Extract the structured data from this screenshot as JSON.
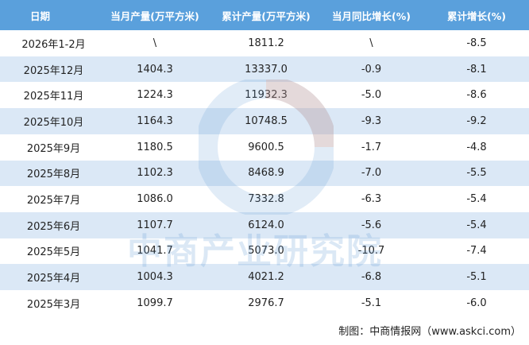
{
  "table": {
    "header": [
      "日期",
      "当月产量(万平方米)",
      "累计产量(万平方米)",
      "当月同比增长(%)",
      "累计增长(%)"
    ],
    "rows": [
      [
        "2026年1-2月",
        "\\",
        "1811.2",
        "\\",
        "-8.5"
      ],
      [
        "2025年12月",
        "1404.3",
        "13337.0",
        "-0.9",
        "-8.1"
      ],
      [
        "2025年11月",
        "1224.3",
        "11932.3",
        "-5.0",
        "-8.6"
      ],
      [
        "2025年10月",
        "1164.3",
        "10748.5",
        "-9.3",
        "-9.2"
      ],
      [
        "2025年9月",
        "1180.5",
        "9600.5",
        "-1.7",
        "-4.8"
      ],
      [
        "2025年8月",
        "1102.3",
        "8468.9",
        "-7.0",
        "-5.5"
      ],
      [
        "2025年7月",
        "1086.0",
        "7332.8",
        "-6.3",
        "-5.4"
      ],
      [
        "2025年6月",
        "1107.7",
        "6124.0",
        "-5.6",
        "-5.4"
      ],
      [
        "2025年5月",
        "1041.7",
        "5073.0",
        "-10.7",
        "-7.4"
      ],
      [
        "2025年4月",
        "1004.3",
        "4021.2",
        "-6.8",
        "-5.1"
      ],
      [
        "2025年3月",
        "1099.7",
        "2976.7",
        "-5.1",
        "-6.0"
      ]
    ]
  },
  "watermark": "中商产业研究院",
  "footer": "制图：中商情报网（www.askci.com）"
}
